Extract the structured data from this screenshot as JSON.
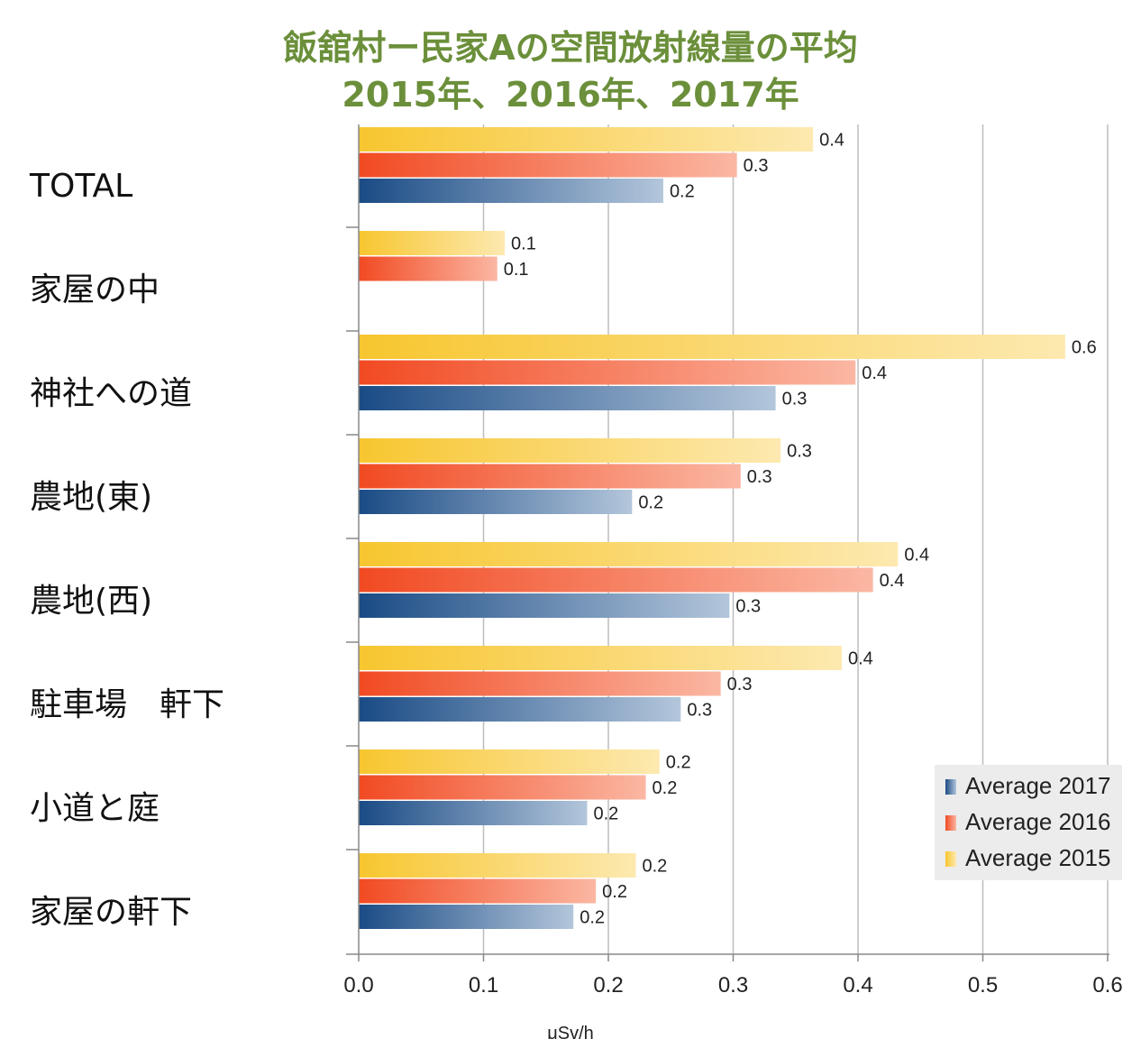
{
  "title_line1": "飯舘村ー民家Aの空間放射線量の平均",
  "title_line2": "2015年、2016年、2017年",
  "chart_data": {
    "type": "bar",
    "orientation": "horizontal",
    "categories": [
      "TOTAL",
      "家屋の中",
      "神社への道",
      "農地(東)",
      "農地(西)",
      "駐車場　軒下",
      "小道と庭",
      "家屋の軒下"
    ],
    "series": [
      {
        "name": "Average 2015",
        "color": "#f7c62f",
        "values": [
          0.364,
          0.117,
          0.566,
          0.338,
          0.432,
          0.387,
          0.241,
          0.222
        ],
        "labels": [
          "0.4",
          "0.1",
          "0.6",
          "0.3",
          "0.4",
          "0.4",
          "0.2",
          "0.2"
        ]
      },
      {
        "name": "Average 2016",
        "color": "#f14a22",
        "values": [
          0.303,
          0.111,
          0.398,
          0.306,
          0.412,
          0.29,
          0.23,
          0.19
        ],
        "labels": [
          "0.3",
          "0.1",
          "0.4",
          "0.3",
          "0.4",
          "0.3",
          "0.2",
          "0.2"
        ]
      },
      {
        "name": "Average 2017",
        "color": "#1a4b85",
        "values": [
          0.244,
          null,
          0.334,
          0.219,
          0.297,
          0.258,
          0.183,
          0.172
        ],
        "labels": [
          "0.2",
          "",
          "0.3",
          "0.2",
          "0.3",
          "0.3",
          "0.2",
          "0.2"
        ]
      }
    ],
    "xlim": [
      0.0,
      0.6
    ],
    "xticks": [
      "0.0",
      "0.1",
      "0.2",
      "0.3",
      "0.4",
      "0.5",
      "0.6"
    ],
    "xlabel": "μSv/h",
    "legend": [
      "Average 2017",
      "Average 2016",
      "Average 2015"
    ],
    "legend_position": "bottom-right",
    "grid": "vertical"
  }
}
